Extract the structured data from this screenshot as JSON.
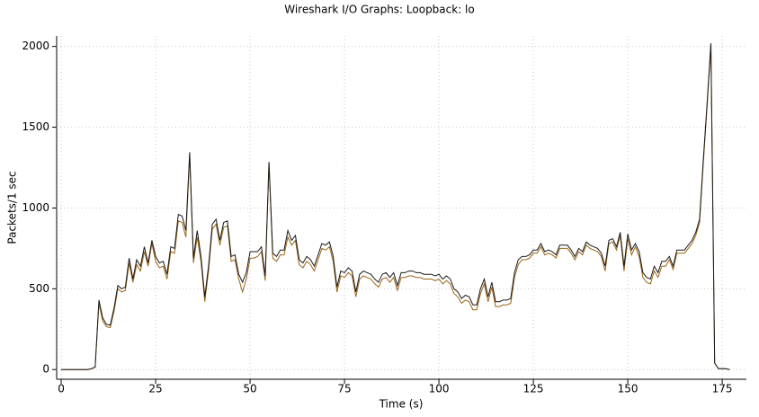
{
  "chart_data": {
    "type": "line",
    "title": "Wireshark I/O Graphs: Loopback: lo",
    "x_label": "Time (s)",
    "y_label": "Packets/1 sec",
    "x": [
      0,
      1,
      2,
      3,
      4,
      5,
      6,
      7,
      8,
      9,
      10,
      11,
      12,
      13,
      14,
      15,
      16,
      17,
      18,
      19,
      20,
      21,
      22,
      23,
      24,
      25,
      26,
      27,
      28,
      29,
      30,
      31,
      32,
      33,
      34,
      35,
      36,
      37,
      38,
      39,
      40,
      41,
      42,
      43,
      44,
      45,
      46,
      47,
      48,
      49,
      50,
      51,
      52,
      53,
      54,
      55,
      56,
      57,
      58,
      59,
      60,
      61,
      62,
      63,
      64,
      65,
      66,
      67,
      68,
      69,
      70,
      71,
      72,
      73,
      74,
      75,
      76,
      77,
      78,
      79,
      80,
      81,
      82,
      83,
      84,
      85,
      86,
      87,
      88,
      89,
      90,
      91,
      92,
      93,
      94,
      95,
      96,
      97,
      98,
      99,
      100,
      101,
      102,
      103,
      104,
      105,
      106,
      107,
      108,
      109,
      110,
      111,
      112,
      113,
      114,
      115,
      116,
      117,
      118,
      119,
      120,
      121,
      122,
      123,
      124,
      125,
      126,
      127,
      128,
      129,
      130,
      131,
      132,
      133,
      134,
      135,
      136,
      137,
      138,
      139,
      140,
      141,
      142,
      143,
      144,
      145,
      146,
      147,
      148,
      149,
      150,
      151,
      152,
      153,
      154,
      155,
      156,
      157,
      158,
      159,
      160,
      161,
      162,
      163,
      164,
      165,
      166,
      167,
      168,
      169,
      170,
      171,
      172,
      173,
      174,
      175,
      176,
      177
    ],
    "series": [
      {
        "color": "#9a6414",
        "values": [
          0,
          0,
          0,
          0,
          0,
          0,
          0,
          0,
          5,
          15,
          410,
          300,
          265,
          260,
          360,
          500,
          480,
          490,
          660,
          540,
          650,
          610,
          730,
          640,
          780,
          670,
          630,
          640,
          560,
          730,
          720,
          920,
          910,
          820,
          1330,
          660,
          820,
          670,
          420,
          610,
          870,
          900,
          770,
          880,
          890,
          670,
          680,
          560,
          480,
          560,
          690,
          690,
          700,
          730,
          550,
          1280,
          690,
          670,
          710,
          710,
          820,
          770,
          800,
          650,
          630,
          670,
          650,
          610,
          680,
          750,
          740,
          760,
          670,
          480,
          580,
          570,
          600,
          580,
          450,
          560,
          580,
          570,
          560,
          530,
          510,
          560,
          570,
          540,
          570,
          490,
          570,
          570,
          580,
          580,
          570,
          570,
          560,
          560,
          560,
          550,
          560,
          530,
          550,
          530,
          470,
          450,
          410,
          430,
          420,
          370,
          370,
          470,
          530,
          420,
          510,
          390,
          390,
          400,
          400,
          410,
          570,
          650,
          680,
          680,
          690,
          720,
          720,
          760,
          710,
          720,
          710,
          690,
          750,
          750,
          750,
          720,
          680,
          730,
          710,
          770,
          750,
          740,
          730,
          700,
          610,
          780,
          790,
          740,
          830,
          610,
          810,
          710,
          760,
          700,
          570,
          540,
          530,
          610,
          570,
          640,
          640,
          680,
          620,
          720,
          720,
          720,
          750,
          780,
          830,
          910,
          1280,
          1630,
          2010,
          40,
          5,
          5,
          5,
          0
        ]
      },
      {
        "color": "#1a1a1a",
        "values": [
          0,
          0,
          0,
          0,
          0,
          0,
          0,
          0,
          5,
          15,
          430,
          320,
          280,
          275,
          380,
          520,
          500,
          510,
          690,
          560,
          680,
          640,
          760,
          660,
          800,
          700,
          660,
          670,
          590,
          760,
          750,
          960,
          950,
          860,
          1345,
          690,
          860,
          700,
          450,
          640,
          900,
          930,
          800,
          910,
          920,
          700,
          710,
          590,
          540,
          600,
          730,
          730,
          730,
          760,
          580,
          1285,
          720,
          700,
          740,
          740,
          860,
          800,
          830,
          680,
          660,
          700,
          680,
          640,
          710,
          780,
          770,
          790,
          700,
          510,
          610,
          600,
          630,
          610,
          480,
          590,
          610,
          600,
          590,
          560,
          540,
          590,
          600,
          570,
          600,
          520,
          600,
          600,
          610,
          610,
          600,
          600,
          590,
          590,
          590,
          580,
          590,
          560,
          580,
          560,
          500,
          480,
          440,
          460,
          450,
          400,
          400,
          500,
          560,
          450,
          540,
          420,
          420,
          430,
          430,
          440,
          600,
          680,
          700,
          700,
          710,
          740,
          740,
          780,
          730,
          740,
          730,
          710,
          770,
          770,
          770,
          740,
          700,
          750,
          730,
          790,
          770,
          760,
          750,
          720,
          640,
          800,
          810,
          760,
          850,
          640,
          840,
          740,
          780,
          730,
          600,
          570,
          560,
          640,
          600,
          670,
          670,
          700,
          640,
          740,
          740,
          740,
          770,
          800,
          850,
          930,
          1300,
          1650,
          2020,
          40,
          5,
          5,
          5,
          0
        ]
      }
    ],
    "xlim": [
      -1.2,
      181.4
    ],
    "xticks": [
      0,
      25,
      50,
      75,
      100,
      125,
      150,
      175
    ],
    "ylim": [
      -60,
      2065
    ],
    "yticks": [
      0,
      500,
      1000,
      1500,
      2000
    ],
    "grid": true
  }
}
